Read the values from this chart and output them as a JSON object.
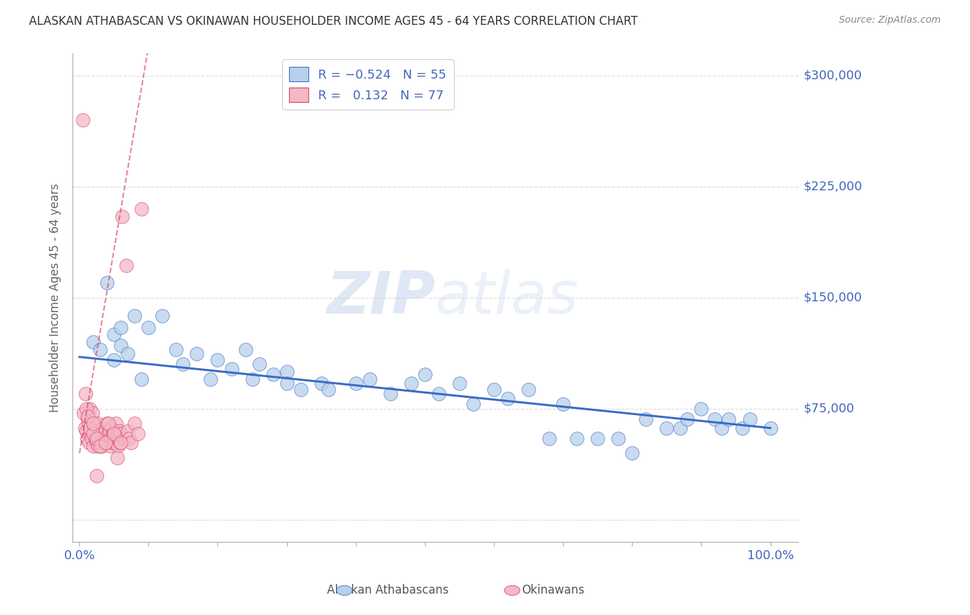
{
  "title": "ALASKAN ATHABASCAN VS OKINAWAN HOUSEHOLDER INCOME AGES 45 - 64 YEARS CORRELATION CHART",
  "source": "Source: ZipAtlas.com",
  "ylabel": "Householder Income Ages 45 - 64 years",
  "yticks": [
    0,
    75000,
    150000,
    225000,
    300000
  ],
  "ytick_labels": [
    "",
    "$75,000",
    "$150,000",
    "$225,000",
    "$300,000"
  ],
  "ymax": 315000,
  "ymin": -15000,
  "xmin": -0.01,
  "xmax": 1.04,
  "blue_color": "#b8d0ea",
  "blue_line_color": "#3a6bc8",
  "pink_color": "#f5b8c4",
  "pink_line_color": "#d44070",
  "background_color": "#ffffff",
  "watermark_zip": "ZIP",
  "watermark_atlas": "atlas",
  "grid_color": "#dddddd",
  "title_color": "#333333",
  "source_color": "#888888",
  "axis_label_color": "#4466bb",
  "ylabel_color": "#666666",
  "blue_scatter_x": [
    0.02,
    0.03,
    0.04,
    0.05,
    0.05,
    0.06,
    0.06,
    0.07,
    0.08,
    0.09,
    0.1,
    0.12,
    0.14,
    0.15,
    0.17,
    0.19,
    0.2,
    0.22,
    0.24,
    0.25,
    0.26,
    0.28,
    0.3,
    0.3,
    0.32,
    0.35,
    0.36,
    0.4,
    0.42,
    0.45,
    0.48,
    0.5,
    0.52,
    0.55,
    0.57,
    0.6,
    0.62,
    0.65,
    0.68,
    0.7,
    0.72,
    0.75,
    0.78,
    0.8,
    0.82,
    0.85,
    0.87,
    0.88,
    0.9,
    0.92,
    0.93,
    0.94,
    0.96,
    0.97,
    1.0
  ],
  "blue_scatter_y": [
    120000,
    115000,
    160000,
    125000,
    108000,
    130000,
    118000,
    112000,
    138000,
    95000,
    130000,
    138000,
    115000,
    105000,
    112000,
    95000,
    108000,
    102000,
    115000,
    95000,
    105000,
    98000,
    100000,
    92000,
    88000,
    92000,
    88000,
    92000,
    95000,
    85000,
    92000,
    98000,
    85000,
    92000,
    78000,
    88000,
    82000,
    88000,
    55000,
    78000,
    55000,
    55000,
    55000,
    45000,
    68000,
    62000,
    62000,
    68000,
    75000,
    68000,
    62000,
    68000,
    62000,
    68000,
    62000
  ],
  "pink_scatter_x": [
    0.005,
    0.006,
    0.008,
    0.009,
    0.01,
    0.011,
    0.012,
    0.013,
    0.014,
    0.015,
    0.016,
    0.017,
    0.018,
    0.019,
    0.02,
    0.021,
    0.022,
    0.023,
    0.024,
    0.025,
    0.026,
    0.027,
    0.028,
    0.029,
    0.03,
    0.031,
    0.032,
    0.033,
    0.034,
    0.035,
    0.036,
    0.037,
    0.038,
    0.039,
    0.04,
    0.041,
    0.042,
    0.043,
    0.044,
    0.045,
    0.046,
    0.047,
    0.048,
    0.049,
    0.05,
    0.051,
    0.052,
    0.053,
    0.054,
    0.055,
    0.056,
    0.057,
    0.058,
    0.059,
    0.06,
    0.062,
    0.065,
    0.068,
    0.07,
    0.072,
    0.075,
    0.08,
    0.085,
    0.09,
    0.01,
    0.012,
    0.015,
    0.02,
    0.025,
    0.03,
    0.038,
    0.042,
    0.05,
    0.055,
    0.06,
    0.02,
    0.025
  ],
  "pink_scatter_y": [
    270000,
    72000,
    62000,
    85000,
    60000,
    55000,
    68000,
    65000,
    52000,
    75000,
    58000,
    60000,
    55000,
    72000,
    50000,
    62000,
    58000,
    55000,
    60000,
    52000,
    65000,
    50000,
    55000,
    58000,
    52000,
    60000,
    55000,
    50000,
    62000,
    55000,
    58000,
    52000,
    60000,
    55000,
    65000,
    52000,
    58000,
    55000,
    60000,
    50000,
    55000,
    62000,
    52000,
    58000,
    55000,
    60000,
    52000,
    65000,
    55000,
    58000,
    50000,
    55000,
    60000,
    52000,
    58000,
    205000,
    55000,
    172000,
    60000,
    55000,
    52000,
    65000,
    58000,
    210000,
    75000,
    70000,
    62000,
    58000,
    55000,
    50000,
    52000,
    65000,
    58000,
    42000,
    52000,
    65000,
    30000
  ],
  "blue_line_x0": 0.0,
  "blue_line_x1": 1.0,
  "blue_line_y0": 110000,
  "blue_line_y1": 62000,
  "pink_line_x0": 0.0,
  "pink_line_x1": 0.1,
  "pink_line_y0": 45000,
  "pink_line_y1": 320000,
  "xtick_positions": [
    0.0,
    0.1,
    0.2,
    0.3,
    0.4,
    0.5,
    0.6,
    0.7,
    0.8,
    0.9,
    1.0
  ]
}
